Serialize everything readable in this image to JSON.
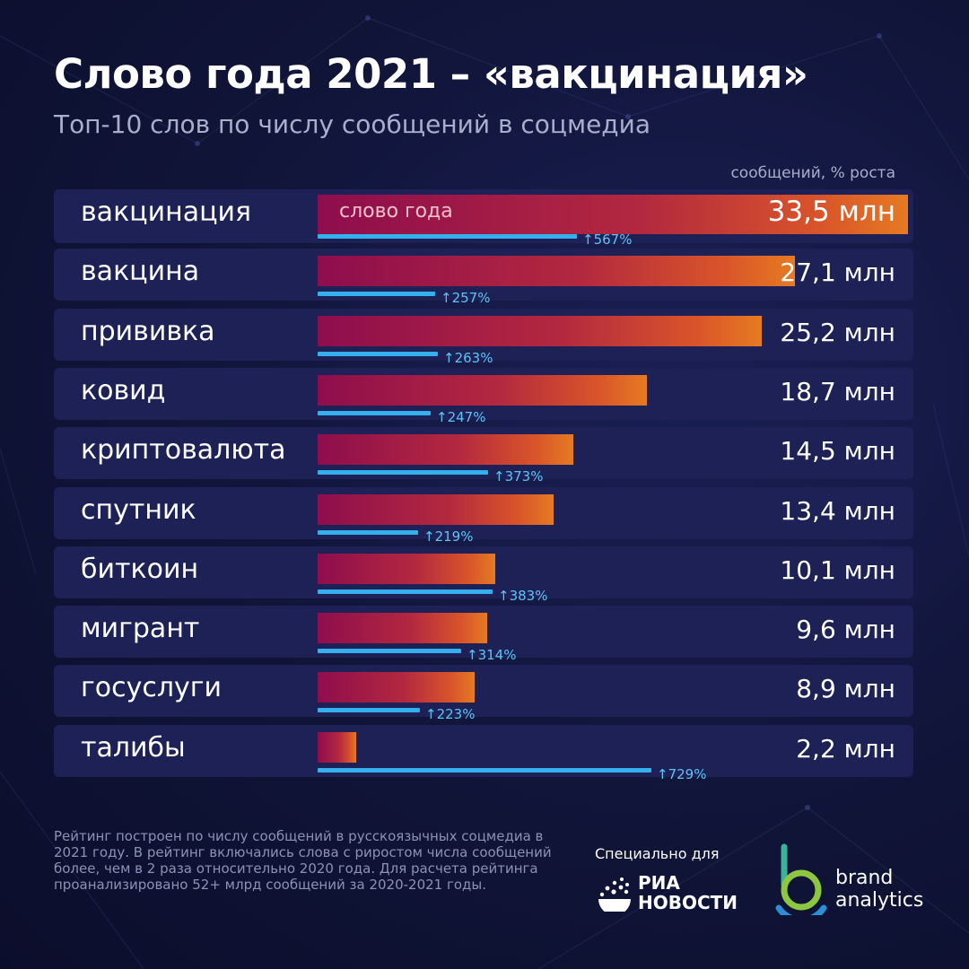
{
  "header": {
    "title": "Слово года 2021 – «вакцинация»",
    "subtitle": "Топ-10 слов по числу сообщений в соцмедиа",
    "unit_label": "сообщений, % роста"
  },
  "chart_data": {
    "type": "bar",
    "orientation": "horizontal",
    "highlight_label": "слово года",
    "categories": [
      "вакцинация",
      "вакцина",
      "прививка",
      "ковид",
      "криптовалюта",
      "спутник",
      "биткоин",
      "мигрант",
      "госуслуги",
      "талибы"
    ],
    "series": [
      {
        "values": [
          33.5,
          27.1,
          25.2,
          18.7,
          14.5,
          13.4,
          10.1,
          9.6,
          8.9,
          2.2
        ],
        "value_labels": [
          "33,5 млн",
          "27,1 млн",
          "25,2 млн",
          "18,7 млн",
          "14,5 млн",
          "13,4 млн",
          "10,1 млн",
          "9,6 млн",
          "8,9 млн",
          "2,2 млн"
        ]
      },
      {
        "values": [
          567,
          257,
          263,
          247,
          373,
          219,
          383,
          314,
          223,
          729
        ],
        "value_labels": [
          "567%",
          "257%",
          "263%",
          "247%",
          "373%",
          "219%",
          "383%",
          "314%",
          "223%",
          "729%"
        ]
      }
    ],
    "colors": {
      "bar_start": "#8e0d4d",
      "bar_end": "#e67a22",
      "growth_line": "#35b0ee",
      "growth_text": "#5ec4f5",
      "row_background": "#1d2156",
      "page_background": "#101437"
    }
  },
  "footer": {
    "note": "Рейтинг построен по числу сообщений в русскоязычных соцмедиа в 2021 году. В рейтинг включались слова с риростом числа сообщений более, чем в 2 раза относительно 2020 года. Для расчета рейтинга  проанализировано 52+ млрд сообщений за 2020-2021 годы.",
    "special_for": "Специально для",
    "ria_logo": {
      "line1": "РИА",
      "line2": "НОВОСТИ",
      "icon": "ria-globe-icon"
    },
    "ba_logo": {
      "line1": "brand",
      "line2": "analytics",
      "icon": "brand-analytics-b-icon"
    }
  }
}
